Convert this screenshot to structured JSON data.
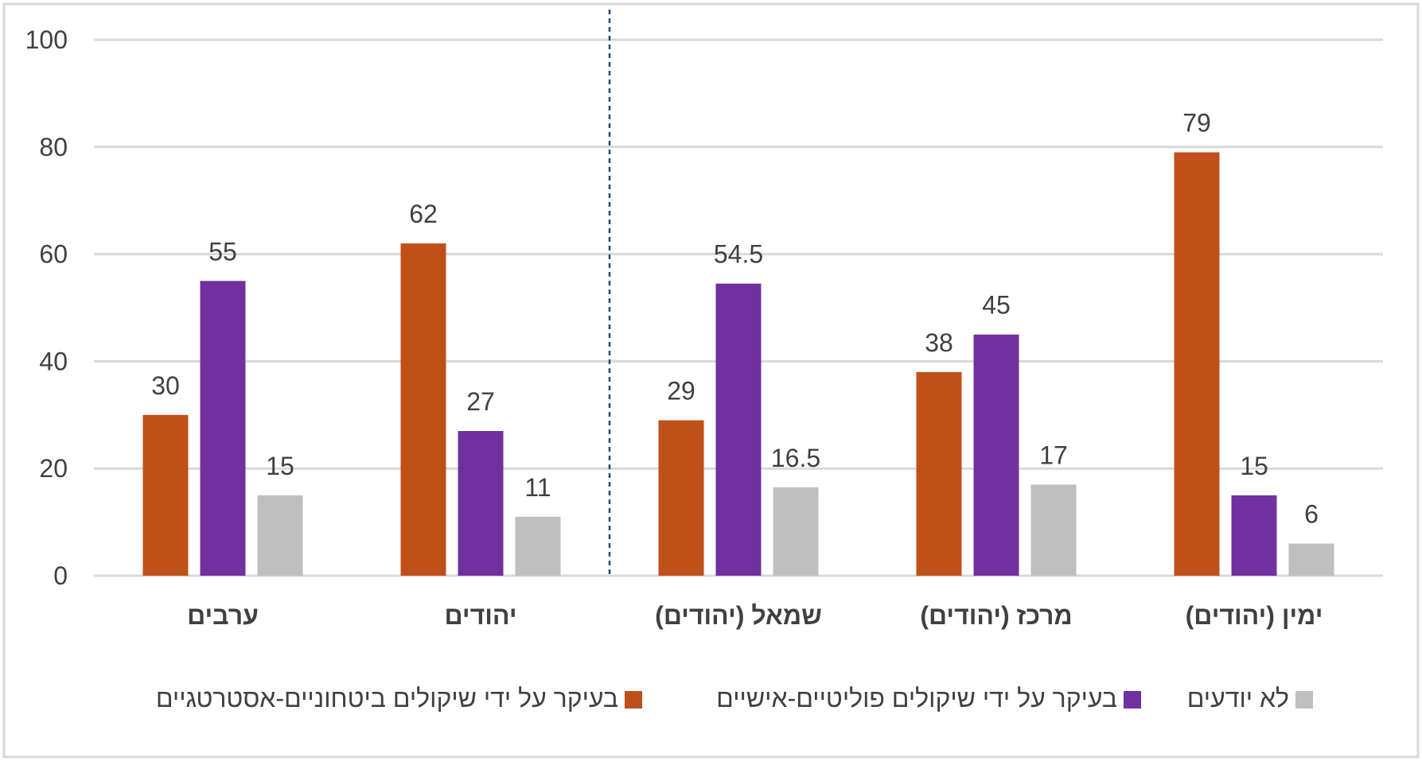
{
  "chart_data": {
    "type": "bar",
    "direction": "rtl",
    "categories": [
      "ימין (יהודים)",
      "מרכז (יהודים)",
      "שמאל (יהודים)",
      "יהודים",
      "ערבים"
    ],
    "series": [
      {
        "name": "בעיקר על ידי שיקולים ביטחוניים-אסטרטגיים",
        "color": "#C0501A",
        "values": [
          79,
          38,
          29,
          62,
          30
        ],
        "labels": [
          "79",
          "38",
          "29",
          "62",
          "30"
        ]
      },
      {
        "name": "בעיקר על ידי שיקולים פוליטיים-אישיים",
        "color": "#7030A0",
        "values": [
          15,
          45,
          54.5,
          27,
          55
        ],
        "labels": [
          "15",
          "45",
          "54.5",
          "27",
          "55"
        ]
      },
      {
        "name": "לא יודעים",
        "color": "#BFBFBF",
        "values": [
          6,
          17,
          16.5,
          11,
          15
        ],
        "labels": [
          "6",
          "17",
          "16.5",
          "11",
          "15"
        ]
      }
    ],
    "ylim": [
      0,
      100
    ],
    "yticks": [
      "0",
      "20",
      "40",
      "60",
      "80",
      "100"
    ],
    "grid": true,
    "separator_after_category_index": 2,
    "title": "",
    "xlabel": "",
    "ylabel": "",
    "legend_position": "bottom"
  }
}
